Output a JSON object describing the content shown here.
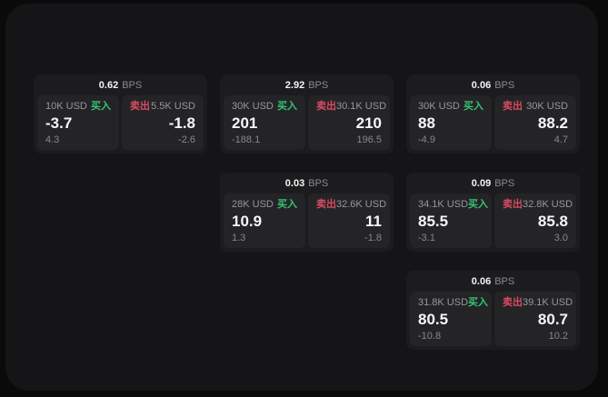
{
  "labels": {
    "buy": "买入",
    "sell": "卖出",
    "bps_unit": "BPS"
  },
  "colors": {
    "buy_green": "#35c470",
    "sell_red": "#d84b60",
    "card_background": "#1c1c1e",
    "cell_background": "#242427",
    "window_background": "#151517",
    "page_background": "#0a0a0b"
  },
  "cards": [
    {
      "bps": "0.62",
      "buy": {
        "amount": "10K USD",
        "price": "-3.7",
        "delta": "4.3"
      },
      "sell": {
        "amount": "5.5K USD",
        "price": "-1.8",
        "delta": "-2.6"
      }
    },
    {
      "bps": "2.92",
      "buy": {
        "amount": "30K USD",
        "price": "201",
        "delta": "-188.1"
      },
      "sell": {
        "amount": "30.1K USD",
        "price": "210",
        "delta": "196.5"
      }
    },
    {
      "bps": "0.06",
      "buy": {
        "amount": "30K USD",
        "price": "88",
        "delta": "-4.9"
      },
      "sell": {
        "amount": "30K USD",
        "price": "88.2",
        "delta": "4.7"
      }
    },
    {
      "bps": "0.03",
      "buy": {
        "amount": "28K USD",
        "price": "10.9",
        "delta": "1.3"
      },
      "sell": {
        "amount": "32.6K USD",
        "price": "11",
        "delta": "-1.8"
      }
    },
    {
      "bps": "0.09",
      "buy": {
        "amount": "34.1K USD",
        "price": "85.5",
        "delta": "-3.1"
      },
      "sell": {
        "amount": "32.8K USD",
        "price": "85.8",
        "delta": "3.0"
      }
    },
    {
      "bps": "0.06",
      "buy": {
        "amount": "31.8K USD",
        "price": "80.5",
        "delta": "-10.8"
      },
      "sell": {
        "amount": "39.1K USD",
        "price": "80.7",
        "delta": "10.2"
      }
    }
  ]
}
